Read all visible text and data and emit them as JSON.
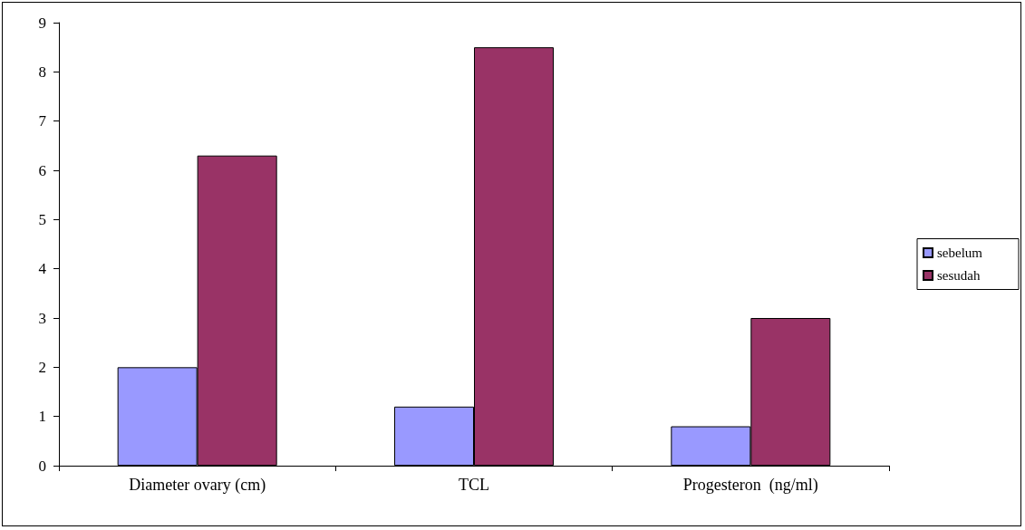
{
  "chart_data": {
    "type": "bar",
    "categories": [
      "Diameter ovary (cm)",
      "TCL",
      "Progesteron  (ng/ml)"
    ],
    "series": [
      {
        "name": "sebelum",
        "color": "#9999ff",
        "values": [
          2.0,
          1.2,
          0.8
        ]
      },
      {
        "name": "sesudah",
        "color": "#993366",
        "values": [
          6.3,
          8.5,
          3.0
        ]
      }
    ],
    "ylim": [
      0,
      9
    ],
    "yticks": [
      0,
      1,
      2,
      3,
      4,
      5,
      6,
      7,
      8,
      9
    ],
    "grid": false,
    "legend": "right"
  }
}
